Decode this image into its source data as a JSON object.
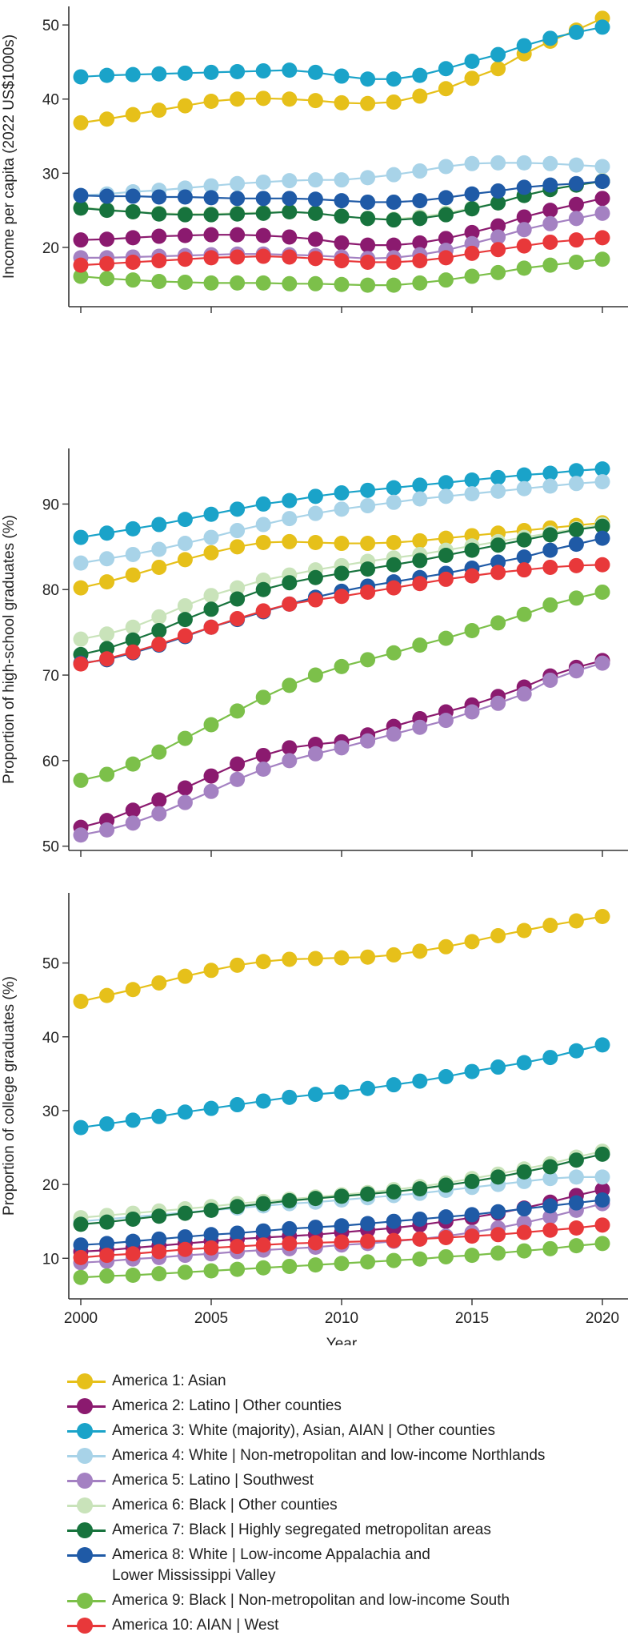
{
  "chart_data": [
    {
      "type": "line",
      "ylabel": "Income per capita (2022 US$1000s)",
      "xlabel": "",
      "ylim": [
        12,
        52.5
      ],
      "yticks": [
        20,
        30,
        40,
        50
      ],
      "xlim": [
        1999.8,
        2021
      ],
      "xticks": [
        2000,
        2005,
        2010,
        2015,
        2020
      ],
      "x": [
        2000,
        2001,
        2002,
        2003,
        2004,
        2005,
        2006,
        2007,
        2008,
        2009,
        2010,
        2011,
        2012,
        2013,
        2014,
        2015,
        2016,
        2017,
        2018,
        2019,
        2020
      ],
      "series": [
        {
          "name": "America 1: Asian",
          "values": [
            36.8,
            37.3,
            37.9,
            38.5,
            39.1,
            39.7,
            40.0,
            40.1,
            40.0,
            39.8,
            39.5,
            39.4,
            39.6,
            40.4,
            41.4,
            42.8,
            44.1,
            46.1,
            47.8,
            49.3,
            50.9
          ]
        },
        {
          "name": "America 2: Latino | Other counties",
          "values": [
            21.0,
            21.1,
            21.3,
            21.5,
            21.6,
            21.7,
            21.7,
            21.6,
            21.4,
            21.1,
            20.6,
            20.3,
            20.3,
            20.6,
            21.2,
            22.0,
            22.9,
            24.1,
            25.0,
            25.8,
            26.6
          ]
        },
        {
          "name": "America 3: White (majority), Asian, AIAN | Other counties",
          "values": [
            43.0,
            43.2,
            43.3,
            43.4,
            43.5,
            43.6,
            43.7,
            43.8,
            43.9,
            43.6,
            43.1,
            42.7,
            42.7,
            43.2,
            44.1,
            45.1,
            46.0,
            47.2,
            48.2,
            49.0,
            49.7
          ]
        },
        {
          "name": "America 4: White | Non-metropolitan and low-income Northlands",
          "values": [
            27.0,
            27.2,
            27.5,
            27.7,
            28.0,
            28.3,
            28.6,
            28.8,
            29.0,
            29.1,
            29.1,
            29.4,
            29.8,
            30.3,
            30.9,
            31.3,
            31.4,
            31.4,
            31.3,
            31.1,
            30.9
          ]
        },
        {
          "name": "America 5: Latino | Southwest",
          "values": [
            18.6,
            18.6,
            18.7,
            18.8,
            18.9,
            19.0,
            19.1,
            19.1,
            19.0,
            18.9,
            18.7,
            18.5,
            18.6,
            19.0,
            19.6,
            20.5,
            21.4,
            22.4,
            23.2,
            23.9,
            24.6
          ]
        },
        {
          "name": "America 6: Black | Other counties",
          "values": [
            25.4,
            25.1,
            24.8,
            24.6,
            24.5,
            24.5,
            24.6,
            24.7,
            24.8,
            24.6,
            24.2,
            23.9,
            23.8,
            24.1,
            24.6,
            25.3,
            26.0,
            27.0,
            27.8,
            28.4,
            29.0
          ]
        },
        {
          "name": "America 7: Black | Highly segregated metropolitan areas",
          "values": [
            25.3,
            25.0,
            24.8,
            24.5,
            24.4,
            24.4,
            24.5,
            24.6,
            24.8,
            24.6,
            24.2,
            23.9,
            23.7,
            23.9,
            24.4,
            25.2,
            26.0,
            27.0,
            27.8,
            28.4,
            28.9
          ]
        },
        {
          "name": "America 8: White | Low-income Appalachia and\nLower Mississippi Valley",
          "values": [
            27.0,
            26.9,
            26.9,
            26.8,
            26.8,
            26.7,
            26.6,
            26.6,
            26.6,
            26.5,
            26.3,
            26.1,
            26.1,
            26.3,
            26.7,
            27.2,
            27.6,
            28.1,
            28.4,
            28.6,
            28.9
          ]
        },
        {
          "name": "America 9: Black | Non-metropolitan and low-income South",
          "values": [
            16.1,
            15.8,
            15.6,
            15.4,
            15.3,
            15.2,
            15.2,
            15.2,
            15.1,
            15.1,
            15.0,
            14.9,
            14.9,
            15.2,
            15.6,
            16.1,
            16.6,
            17.2,
            17.6,
            18.0,
            18.4
          ]
        },
        {
          "name": "America 10: AIAN | West",
          "values": [
            17.6,
            17.8,
            18.0,
            18.2,
            18.4,
            18.6,
            18.7,
            18.8,
            18.7,
            18.5,
            18.2,
            18.0,
            18.0,
            18.2,
            18.6,
            19.2,
            19.7,
            20.2,
            20.7,
            21.0,
            21.3
          ]
        }
      ]
    },
    {
      "type": "line",
      "ylabel": "Proportion of high-school graduates (%)",
      "xlabel": "",
      "ylim": [
        49.5,
        96.5
      ],
      "yticks": [
        50,
        60,
        70,
        80,
        90
      ],
      "xlim": [
        1999.8,
        2021
      ],
      "xticks": [
        2000,
        2005,
        2010,
        2015,
        2020
      ],
      "x": [
        2000,
        2001,
        2002,
        2003,
        2004,
        2005,
        2006,
        2007,
        2008,
        2009,
        2010,
        2011,
        2012,
        2013,
        2014,
        2015,
        2016,
        2017,
        2018,
        2019,
        2020
      ],
      "series": [
        {
          "name": "America 1: Asian",
          "values": [
            80.2,
            80.9,
            81.7,
            82.6,
            83.5,
            84.3,
            85.0,
            85.5,
            85.6,
            85.5,
            85.4,
            85.4,
            85.5,
            85.7,
            86.0,
            86.3,
            86.6,
            86.9,
            87.2,
            87.5,
            87.8
          ]
        },
        {
          "name": "America 2: Latino | Other counties",
          "values": [
            52.2,
            53.0,
            54.2,
            55.4,
            56.8,
            58.2,
            59.6,
            60.6,
            61.5,
            61.9,
            62.2,
            63.0,
            64.0,
            64.9,
            65.7,
            66.5,
            67.5,
            68.6,
            69.9,
            70.9,
            71.7
          ]
        },
        {
          "name": "America 3: White (majority), Asian, AIAN | Other counties",
          "values": [
            86.1,
            86.6,
            87.1,
            87.6,
            88.2,
            88.8,
            89.4,
            90.0,
            90.4,
            90.9,
            91.3,
            91.6,
            91.9,
            92.2,
            92.5,
            92.8,
            93.1,
            93.4,
            93.6,
            93.9,
            94.1
          ]
        },
        {
          "name": "America 4: White | Non-metropolitan and low-income Northlands",
          "values": [
            83.1,
            83.6,
            84.1,
            84.7,
            85.4,
            86.1,
            86.9,
            87.6,
            88.3,
            88.9,
            89.4,
            89.8,
            90.2,
            90.6,
            90.9,
            91.2,
            91.5,
            91.8,
            92.1,
            92.4,
            92.6
          ]
        },
        {
          "name": "America 5: Latino | Southwest",
          "values": [
            51.3,
            51.9,
            52.7,
            53.8,
            55.1,
            56.4,
            57.8,
            59.0,
            60.0,
            60.8,
            61.5,
            62.3,
            63.1,
            63.9,
            64.7,
            65.7,
            66.7,
            67.8,
            69.4,
            70.5,
            71.4
          ]
        },
        {
          "name": "America 6: Black | Other counties",
          "values": [
            74.2,
            74.8,
            75.6,
            76.8,
            78.1,
            79.3,
            80.2,
            81.1,
            81.7,
            82.3,
            82.8,
            83.3,
            83.7,
            84.1,
            84.6,
            85.1,
            85.6,
            86.1,
            86.6,
            87.1,
            87.6
          ]
        },
        {
          "name": "America 7: Black | Highly segregated metropolitan areas",
          "values": [
            72.4,
            73.1,
            74.1,
            75.2,
            76.5,
            77.7,
            78.9,
            80.0,
            80.8,
            81.4,
            81.9,
            82.4,
            82.9,
            83.4,
            84.0,
            84.6,
            85.2,
            85.8,
            86.4,
            87.0,
            87.4
          ]
        },
        {
          "name": "America 8: White | Low-income Appalachia and\nLower Mississippi Valley",
          "values": [
            71.4,
            71.8,
            72.6,
            73.5,
            74.5,
            75.6,
            76.5,
            77.4,
            78.3,
            79.1,
            79.8,
            80.4,
            80.9,
            81.4,
            81.9,
            82.5,
            83.2,
            83.8,
            84.6,
            85.3,
            86.0
          ]
        },
        {
          "name": "America 9: Black | Non-metropolitan and low-income South",
          "values": [
            57.7,
            58.4,
            59.6,
            61.0,
            62.6,
            64.2,
            65.8,
            67.4,
            68.8,
            70.0,
            71.0,
            71.8,
            72.6,
            73.5,
            74.3,
            75.2,
            76.1,
            77.1,
            78.2,
            79.0,
            79.7
          ]
        },
        {
          "name": "America 10: AIAN | West",
          "values": [
            71.3,
            71.9,
            72.7,
            73.6,
            74.6,
            75.6,
            76.6,
            77.5,
            78.3,
            78.8,
            79.2,
            79.7,
            80.2,
            80.7,
            81.2,
            81.6,
            82.0,
            82.3,
            82.6,
            82.8,
            82.9
          ]
        }
      ]
    },
    {
      "type": "line",
      "ylabel": "Proportion of college graduates (%)",
      "xlabel": "Year",
      "ylim": [
        4.5,
        59.5
      ],
      "yticks": [
        10,
        20,
        30,
        40,
        50
      ],
      "xlim": [
        1999.8,
        2021
      ],
      "xticks": [
        2000,
        2005,
        2010,
        2015,
        2020
      ],
      "x": [
        2000,
        2001,
        2002,
        2003,
        2004,
        2005,
        2006,
        2007,
        2008,
        2009,
        2010,
        2011,
        2012,
        2013,
        2014,
        2015,
        2016,
        2017,
        2018,
        2019,
        2020
      ],
      "series": [
        {
          "name": "America 1: Asian",
          "values": [
            44.8,
            45.6,
            46.4,
            47.3,
            48.2,
            49.0,
            49.7,
            50.2,
            50.5,
            50.6,
            50.7,
            50.8,
            51.1,
            51.6,
            52.2,
            52.9,
            53.7,
            54.4,
            55.1,
            55.7,
            56.3
          ]
        },
        {
          "name": "America 2: Latino | Other counties",
          "values": [
            10.9,
            11.1,
            11.4,
            11.7,
            12.0,
            12.3,
            12.6,
            12.8,
            13.0,
            13.2,
            13.5,
            13.8,
            14.1,
            14.5,
            15.0,
            15.5,
            16.1,
            16.8,
            17.6,
            18.5,
            19.3
          ]
        },
        {
          "name": "America 3: White (majority), Asian, AIAN | Other counties",
          "values": [
            27.7,
            28.2,
            28.7,
            29.2,
            29.8,
            30.3,
            30.8,
            31.3,
            31.8,
            32.2,
            32.5,
            33.0,
            33.5,
            34.0,
            34.6,
            35.3,
            35.9,
            36.5,
            37.2,
            38.1,
            38.9
          ]
        },
        {
          "name": "America 4: White | Non-metropolitan and low-income Northlands",
          "values": [
            15.0,
            15.3,
            15.6,
            15.9,
            16.2,
            16.5,
            16.8,
            17.1,
            17.4,
            17.6,
            17.9,
            18.2,
            18.5,
            18.8,
            19.2,
            19.6,
            20.0,
            20.4,
            20.8,
            21.0,
            21.0
          ]
        },
        {
          "name": "America 5: Latino | Southwest",
          "values": [
            9.4,
            9.6,
            9.9,
            10.1,
            10.4,
            10.6,
            10.9,
            11.1,
            11.3,
            11.5,
            11.8,
            12.0,
            12.3,
            12.6,
            13.0,
            13.5,
            14.1,
            14.8,
            15.6,
            16.5,
            17.4
          ]
        },
        {
          "name": "America 6: Black | Other counties",
          "values": [
            15.5,
            15.8,
            16.1,
            16.4,
            16.7,
            17.0,
            17.4,
            17.7,
            18.0,
            18.3,
            18.6,
            18.9,
            19.3,
            19.7,
            20.2,
            20.8,
            21.4,
            22.1,
            22.8,
            23.7,
            24.5
          ]
        },
        {
          "name": "America 7: Black | Highly segregated metropolitan areas",
          "values": [
            14.6,
            14.9,
            15.3,
            15.7,
            16.1,
            16.5,
            17.0,
            17.4,
            17.8,
            18.1,
            18.4,
            18.7,
            19.0,
            19.4,
            19.9,
            20.4,
            21.0,
            21.7,
            22.4,
            23.3,
            24.1
          ]
        },
        {
          "name": "America 8: White | Low-income Appalachia and\nLower Mississippi Valley",
          "values": [
            11.8,
            12.0,
            12.3,
            12.6,
            12.9,
            13.2,
            13.4,
            13.7,
            14.0,
            14.2,
            14.4,
            14.7,
            15.0,
            15.3,
            15.6,
            15.9,
            16.3,
            16.7,
            17.1,
            17.5,
            17.9
          ]
        },
        {
          "name": "America 9: Black | Non-metropolitan and low-income South",
          "values": [
            7.4,
            7.6,
            7.7,
            7.9,
            8.1,
            8.3,
            8.5,
            8.7,
            8.9,
            9.1,
            9.3,
            9.5,
            9.7,
            9.9,
            10.2,
            10.4,
            10.7,
            11.0,
            11.3,
            11.7,
            12.0
          ]
        },
        {
          "name": "America 10: AIAN | West",
          "values": [
            10.1,
            10.4,
            10.6,
            10.9,
            11.2,
            11.4,
            11.6,
            11.8,
            12.0,
            12.1,
            12.2,
            12.3,
            12.4,
            12.6,
            12.8,
            13.0,
            13.2,
            13.5,
            13.8,
            14.1,
            14.5
          ]
        }
      ]
    }
  ],
  "legend": {
    "items": [
      {
        "label": "America 1: Asian",
        "color": "#e6c01a"
      },
      {
        "label": "America 2: Latino | Other counties",
        "color": "#8b1a6f"
      },
      {
        "label": "America 3: White (majority), Asian, AIAN | Other counties",
        "color": "#1aa3c9"
      },
      {
        "label": "America 4: White | Non-metropolitan and low-income Northlands",
        "color": "#a8d3e8"
      },
      {
        "label": "America 5: Latino | Southwest",
        "color": "#a481c2"
      },
      {
        "label": "America 6: Black | Other counties",
        "color": "#c9e3ba"
      },
      {
        "label": "America 7: Black | Highly segregated metropolitan areas",
        "color": "#17733d"
      },
      {
        "label": "America 8: White | Low-income Appalachia and\nLower Mississippi Valley",
        "color": "#1f5aa6"
      },
      {
        "label": "America 9: Black | Non-metropolitan and low-income South",
        "color": "#7cc04a"
      },
      {
        "label": "America 10: AIAN | West",
        "color": "#e8383a"
      }
    ]
  }
}
